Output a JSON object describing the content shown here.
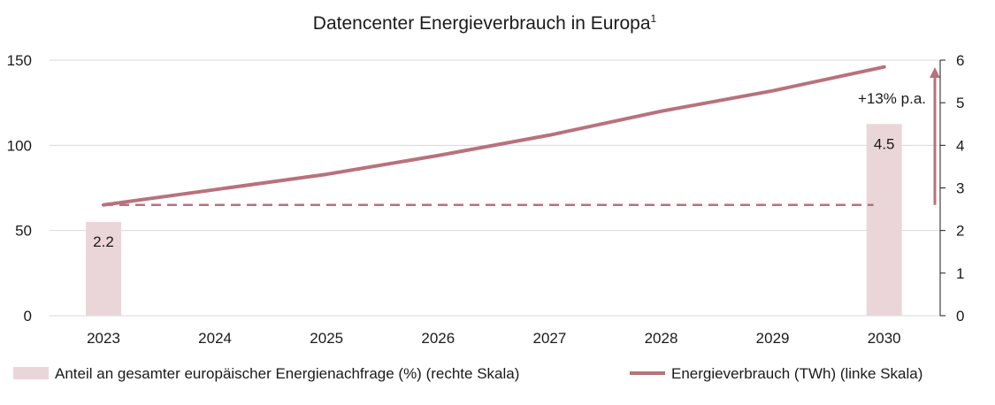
{
  "chart_data": {
    "type": "bar",
    "title": "Datencenter Energieverbrauch in Europa",
    "title_superscript": "1",
    "categories": [
      "2023",
      "2024",
      "2025",
      "2026",
      "2027",
      "2028",
      "2029",
      "2030"
    ],
    "left_axis": {
      "ticks": [
        "0",
        "50",
        "100",
        "150"
      ],
      "ylim": [
        0,
        150
      ]
    },
    "right_axis": {
      "ticks": [
        "0",
        "1",
        "2",
        "3",
        "4",
        "5",
        "6"
      ],
      "ylim": [
        0,
        6
      ]
    },
    "series": [
      {
        "name": "Anteil an gesamter europäischer Energienachfrage (%) (rechte Skala)",
        "type": "bar",
        "axis": "right",
        "color": "#ead6d9",
        "values": [
          2.2,
          null,
          null,
          null,
          null,
          null,
          null,
          4.5
        ],
        "data_labels": [
          "2.2",
          "",
          "",
          "",
          "",
          "",
          "",
          "4.5"
        ]
      },
      {
        "name": "Energieverbrauch (TWh) (linke Skala)",
        "type": "line",
        "axis": "left",
        "color": "#b8727c",
        "values": [
          65,
          74,
          83,
          94,
          106,
          120,
          132,
          146
        ]
      }
    ],
    "reference_line": {
      "value": 65,
      "axis": "left",
      "style": "dashed",
      "color": "#b8727c"
    },
    "growth_annotation": {
      "text": "+13% p.a.",
      "arrow_from": 2.6,
      "arrow_to": 6.0,
      "axis": "right"
    },
    "grid": true,
    "legend_position": "bottom"
  }
}
